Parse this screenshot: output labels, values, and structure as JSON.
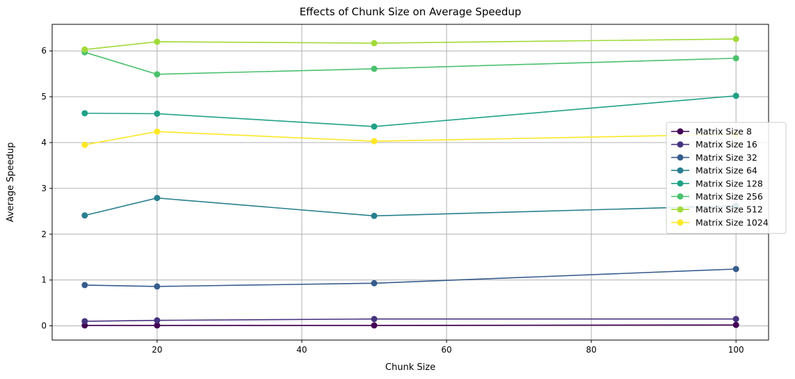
{
  "chart_data": {
    "type": "line",
    "title": "Effects of Chunk Size on Average Speedup",
    "xlabel": "Chunk Size",
    "ylabel": "Average Speedup",
    "xlim": [
      5.5,
      104.5
    ],
    "ylim": [
      -0.31,
      6.58
    ],
    "xticks": [
      20,
      40,
      60,
      80,
      100
    ],
    "yticks": [
      0,
      1,
      2,
      3,
      4,
      5,
      6
    ],
    "grid": true,
    "legend_position": "center-right",
    "x": [
      10,
      20,
      50,
      100
    ],
    "series": [
      {
        "name": "Matrix Size 8",
        "color": "#440154",
        "values": [
          0.01,
          0.01,
          0.01,
          0.02
        ]
      },
      {
        "name": "Matrix Size 16",
        "color": "#46327e",
        "values": [
          0.1,
          0.12,
          0.15,
          0.15
        ]
      },
      {
        "name": "Matrix Size 32",
        "color": "#365c8d",
        "values": [
          0.89,
          0.86,
          0.93,
          1.24
        ]
      },
      {
        "name": "Matrix Size 64",
        "color": "#277f8e",
        "values": [
          2.41,
          2.79,
          2.4,
          2.62
        ]
      },
      {
        "name": "Matrix Size 128",
        "color": "#1fa187",
        "values": [
          4.64,
          4.63,
          4.35,
          5.02
        ]
      },
      {
        "name": "Matrix Size 256",
        "color": "#4ac16d",
        "values": [
          5.97,
          5.49,
          5.61,
          5.84
        ]
      },
      {
        "name": "Matrix Size 512",
        "color": "#a0da39",
        "values": [
          6.03,
          6.2,
          6.17,
          6.26
        ]
      },
      {
        "name": "Matrix Size 1024",
        "color": "#fde725",
        "values": [
          3.95,
          4.24,
          4.03,
          4.18
        ]
      }
    ]
  }
}
